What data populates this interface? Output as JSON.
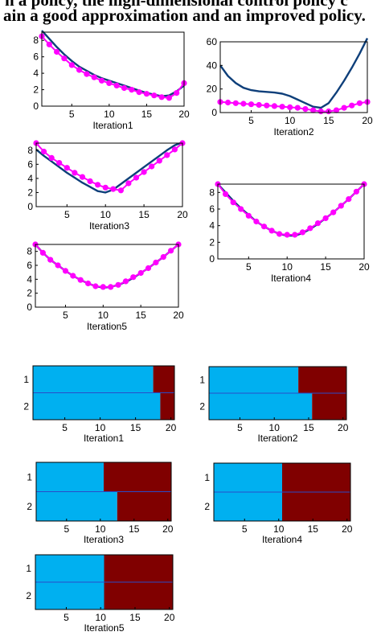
{
  "caption": {
    "line1": "n a policy, the high-dimensional control policy c",
    "line2": "ain a good approximation and an improved policy."
  },
  "colors": {
    "approximation": "#0e3f7a",
    "samples": "#ff00ff",
    "action1": "#00b0f0",
    "action2": "#800000"
  },
  "chart_data": [
    {
      "type": "line",
      "id": "v1",
      "xlabel": "Iteration1",
      "xlim": [
        1,
        20
      ],
      "ylim": [
        0,
        9
      ],
      "xticks": [
        5,
        10,
        15,
        20
      ],
      "yticks": [
        0,
        2,
        4,
        6,
        8
      ],
      "x": [
        1,
        2,
        3,
        4,
        5,
        6,
        7,
        8,
        9,
        10,
        11,
        12,
        13,
        14,
        15,
        16,
        17,
        18,
        19,
        20
      ],
      "series": [
        {
          "values": [
            9.2,
            8.2,
            7.2,
            6.3,
            5.5,
            4.8,
            4.3,
            3.8,
            3.4,
            3.1,
            2.8,
            2.5,
            2.2,
            1.9,
            1.6,
            1.4,
            1.2,
            1.3,
            1.8,
            2.5
          ]
        },
        {
          "values": [
            8.5,
            7.5,
            6.6,
            5.8,
            5.0,
            4.4,
            3.9,
            3.5,
            3.1,
            2.8,
            2.5,
            2.2,
            2.0,
            1.7,
            1.5,
            1.3,
            1.1,
            1.0,
            1.6,
            2.8
          ]
        }
      ]
    },
    {
      "type": "line",
      "id": "v2",
      "xlabel": "Iteration2",
      "xlim": [
        1,
        20
      ],
      "ylim": [
        0,
        60
      ],
      "xticks": [
        5,
        10,
        15,
        20
      ],
      "yticks": [
        0,
        20,
        40,
        60
      ],
      "x": [
        1,
        2,
        3,
        4,
        5,
        6,
        7,
        8,
        9,
        10,
        11,
        12,
        13,
        14,
        15,
        16,
        17,
        18,
        19,
        20
      ],
      "series": [
        {
          "values": [
            40,
            31,
            25,
            21,
            19,
            18,
            17.5,
            17,
            16,
            14,
            11,
            8,
            5,
            4,
            8,
            17,
            27,
            38,
            50,
            63
          ]
        },
        {
          "values": [
            9,
            8.5,
            8,
            7.5,
            7,
            6.5,
            6,
            5.5,
            5,
            4.5,
            4,
            3,
            2,
            1,
            1,
            2,
            4,
            6,
            8,
            9
          ]
        }
      ]
    },
    {
      "type": "line",
      "id": "v3",
      "xlabel": "Iteration3",
      "xlim": [
        1,
        20
      ],
      "ylim": [
        0,
        9
      ],
      "xticks": [
        5,
        10,
        15,
        20
      ],
      "yticks": [
        0,
        2,
        4,
        6,
        8
      ],
      "x": [
        1,
        2,
        3,
        4,
        5,
        6,
        7,
        8,
        9,
        10,
        11,
        12,
        13,
        14,
        15,
        16,
        17,
        18,
        19,
        20
      ],
      "series": [
        {
          "values": [
            8.1,
            7.2,
            6.4,
            5.6,
            4.8,
            4.1,
            3.4,
            2.8,
            2.2,
            2.0,
            2.4,
            3.2,
            4.0,
            4.8,
            5.6,
            6.4,
            7.2,
            8.0,
            8.7,
            9.1
          ]
        },
        {
          "values": [
            9.0,
            7.8,
            6.9,
            6.2,
            5.5,
            4.8,
            4.2,
            3.6,
            3.1,
            2.7,
            2.5,
            2.3,
            3.3,
            4.1,
            4.9,
            5.7,
            6.5,
            7.3,
            8.1,
            9.0
          ]
        }
      ]
    },
    {
      "type": "line",
      "id": "v4",
      "xlabel": "Iteration4",
      "xlim": [
        1,
        20
      ],
      "ylim": [
        0,
        9
      ],
      "xticks": [
        5,
        10,
        15,
        20
      ],
      "yticks": [
        0,
        2,
        4,
        6,
        8
      ],
      "x": [
        1,
        2,
        3,
        4,
        5,
        6,
        7,
        8,
        9,
        10,
        11,
        12,
        13,
        14,
        15,
        16,
        17,
        18,
        19,
        20
      ],
      "series": [
        {
          "values": [
            9.0,
            8.0,
            7.0,
            6.1,
            5.3,
            4.5,
            3.9,
            3.4,
            3.0,
            2.8,
            2.8,
            3.1,
            3.6,
            4.2,
            4.9,
            5.6,
            6.4,
            7.2,
            8.1,
            9.0
          ]
        },
        {
          "values": [
            9.0,
            7.8,
            6.8,
            6.0,
            5.2,
            4.5,
            3.9,
            3.4,
            3.0,
            2.9,
            2.9,
            3.2,
            3.7,
            4.3,
            4.9,
            5.6,
            6.4,
            7.2,
            8.1,
            9.0
          ]
        }
      ]
    },
    {
      "type": "line",
      "id": "v5",
      "xlabel": "Iteration5",
      "xlim": [
        1,
        20
      ],
      "ylim": [
        0,
        9
      ],
      "xticks": [
        5,
        10,
        15,
        20
      ],
      "yticks": [
        0,
        2,
        4,
        6,
        8
      ],
      "x": [
        1,
        2,
        3,
        4,
        5,
        6,
        7,
        8,
        9,
        10,
        11,
        12,
        13,
        14,
        15,
        16,
        17,
        18,
        19,
        20
      ],
      "series": [
        {
          "values": [
            9.0,
            7.8,
            6.8,
            6.0,
            5.2,
            4.5,
            3.9,
            3.4,
            3.0,
            2.8,
            2.9,
            3.2,
            3.6,
            4.2,
            4.9,
            5.6,
            6.4,
            7.2,
            8.1,
            9.0
          ]
        },
        {
          "values": [
            9.0,
            7.8,
            6.8,
            6.0,
            5.2,
            4.5,
            3.9,
            3.4,
            3.0,
            2.9,
            2.9,
            3.2,
            3.7,
            4.3,
            4.9,
            5.6,
            6.4,
            7.2,
            8.1,
            9.0
          ]
        }
      ]
    },
    {
      "type": "heatmap",
      "id": "p1",
      "xlabel": "Iteration1",
      "xlim": [
        0.5,
        20.5
      ],
      "xticks": [
        5,
        10,
        15,
        20
      ],
      "yticks": [
        1,
        2
      ],
      "rows": [
        {
          "row": 1,
          "switch": 17.5
        },
        {
          "row": 2,
          "switch": 18.5
        }
      ]
    },
    {
      "type": "heatmap",
      "id": "p2",
      "xlabel": "Iteration2",
      "xlim": [
        0.5,
        20.5
      ],
      "xticks": [
        5,
        10,
        15,
        20
      ],
      "yticks": [
        1,
        2
      ],
      "rows": [
        {
          "row": 1,
          "switch": 13.5
        },
        {
          "row": 2,
          "switch": 15.5
        }
      ]
    },
    {
      "type": "heatmap",
      "id": "p3",
      "xlabel": "Iteration3",
      "xlim": [
        0.5,
        20.5
      ],
      "xticks": [
        5,
        10,
        15,
        20
      ],
      "yticks": [
        1,
        2
      ],
      "rows": [
        {
          "row": 1,
          "switch": 10.5
        },
        {
          "row": 2,
          "switch": 12.5
        }
      ]
    },
    {
      "type": "heatmap",
      "id": "p4",
      "xlabel": "Iteration4",
      "xlim": [
        0.5,
        20.5
      ],
      "xticks": [
        5,
        10,
        15,
        20
      ],
      "yticks": [
        1,
        2
      ],
      "rows": [
        {
          "row": 1,
          "switch": 10.5
        },
        {
          "row": 2,
          "switch": 10.5
        }
      ]
    },
    {
      "type": "heatmap",
      "id": "p5",
      "xlabel": "Iteration5",
      "xlim": [
        0.5,
        20.5
      ],
      "xticks": [
        5,
        10,
        15,
        20
      ],
      "yticks": [
        1,
        2
      ],
      "rows": [
        {
          "row": 1,
          "switch": 10.5
        },
        {
          "row": 2,
          "switch": 10.5
        }
      ]
    }
  ]
}
